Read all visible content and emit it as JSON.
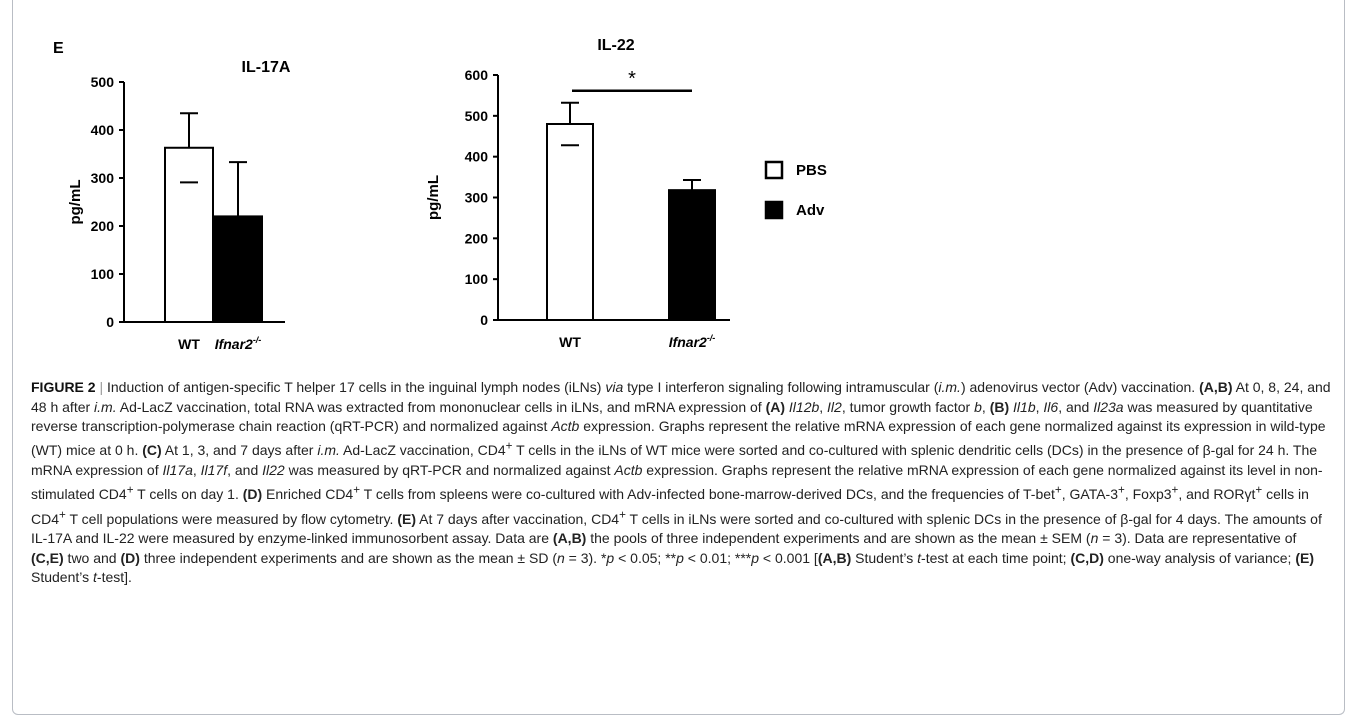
{
  "panel_label": "E",
  "legend": {
    "items": [
      {
        "label": "PBS",
        "fill": "#ffffff"
      },
      {
        "label": "Adv",
        "fill": "#000000"
      }
    ]
  },
  "colors": {
    "frame": "#b9bdc4",
    "pbs": "#ffffff",
    "adv": "#000000"
  },
  "chart_data": [
    {
      "type": "bar",
      "title": "IL-17A",
      "ylabel": "pg/mL",
      "xlabel": "",
      "categories": [
        "WT",
        "Ifnar2-/-"
      ],
      "values": [
        363,
        220
      ],
      "errors": [
        72,
        113
      ],
      "fills": [
        "#ffffff",
        "#000000"
      ],
      "ylim": [
        0,
        500
      ],
      "yticks": [
        0,
        100,
        200,
        300,
        400,
        500
      ],
      "significance": null
    },
    {
      "type": "bar",
      "title": "IL-22",
      "ylabel": "pg/mL",
      "xlabel": "",
      "categories": [
        "WT",
        "Ifnar2-/-"
      ],
      "values": [
        480,
        318
      ],
      "errors": [
        52,
        25
      ],
      "fills": [
        "#ffffff",
        "#000000"
      ],
      "ylim": [
        0,
        600
      ],
      "yticks": [
        0,
        100,
        200,
        300,
        400,
        500,
        600
      ],
      "significance": "*"
    }
  ],
  "caption": {
    "figure_label": "FIGURE 2",
    "separator": "|",
    "text_html": "Induction of antigen-specific T helper 17 cells in the inguinal lymph nodes (iLNs) <i>via</i> type I interferon signaling following intramuscular (<i>i.m.</i>) adenovirus vector (Adv) vaccination. <b>(A,B)</b> At 0, 8, 24, and 48 h after <i>i.m.</i> Ad-LacZ vaccination, total RNA was extracted from mononuclear cells in iLNs, and mRNA expression of <b>(A)</b> <i>Il12b</i>, <i>Il2</i>, tumor growth factor <i>b</i>, <b>(B)</b> <i>Il1b</i>, <i>Il6</i>, and <i>Il23a</i> was measured by quantitative reverse transcription-polymerase chain reaction (qRT-PCR) and normalized against <i>Actb</i> expression. Graphs represent the relative mRNA expression of each gene normalized against its expression in wild-type (WT) mice at 0 h. <b>(C)</b> At 1, 3, and 7 days after <i>i.m.</i> Ad-LacZ vaccination, CD4<sup>+</sup> T cells in the iLNs of WT mice were sorted and co-cultured with splenic dendritic cells (DCs) in the presence of β-gal for 24 h. The mRNA expression of <i>Il17a</i>, <i>Il17f</i>, and <i>Il22</i> was measured by qRT-PCR and normalized against <i>Actb</i> expression. Graphs represent the relative mRNA expression of each gene normalized against its level in non-stimulated CD4<sup>+</sup> T cells on day 1. <b>(D)</b> Enriched CD4<sup>+</sup> T cells from spleens were co-cultured with Adv-infected bone-marrow-derived DCs, and the frequencies of T-bet<sup>+</sup>, GATA-3<sup>+</sup>, Foxp3<sup>+</sup>, and RORγt<sup>+</sup> cells in CD4<sup>+</sup> T cell populations were measured by flow cytometry. <b>(E)</b> At 7 days after vaccination, CD4<sup>+</sup> T cells in iLNs were sorted and co-cultured with splenic DCs in the presence of β-gal for 4 days. The amounts of IL-17A and IL-22 were measured by enzyme-linked immunosorbent assay. Data are <b>(A,B)</b> the pools of three independent experiments and are shown as the mean ± SEM (<i>n</i> = 3). Data are representative of <b>(C,E)</b> two and <b>(D)</b> three independent experiments and are shown as the mean ± SD (<i>n</i> = 3). *<i>p</i> &lt; 0.05; **<i>p</i> &lt; 0.01; ***<i>p</i> &lt; 0.001 [<b>(A,B)</b> Student’s <i>t</i>-test at each time point; <b>(C,D)</b> one-way analysis of variance; <b>(E)</b> Student’s <i>t</i>-test]."
  }
}
